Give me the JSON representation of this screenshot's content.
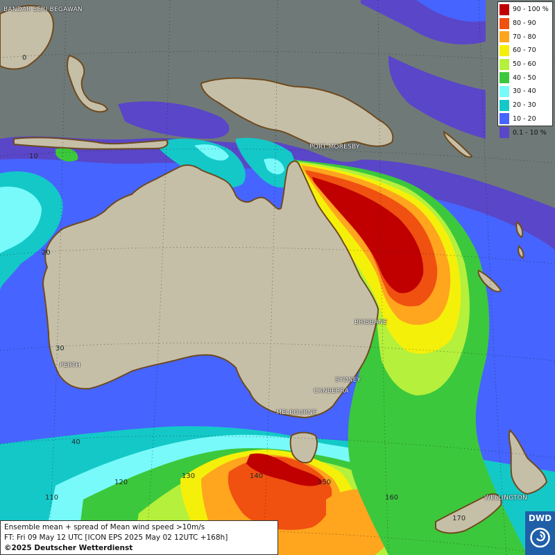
{
  "map": {
    "region": "Australia / South-West Pacific",
    "colors": {
      "ocean": "#6f7a78",
      "land": "#c6bfa8",
      "coast": "#6e4a1e"
    }
  },
  "legend": {
    "items": [
      {
        "label": "90 - 100 %",
        "color": "#c00000"
      },
      {
        "label": "80 - 90",
        "color": "#f05010"
      },
      {
        "label": "70 - 80",
        "color": "#ffa51e"
      },
      {
        "label": "60 - 70",
        "color": "#f5f00a"
      },
      {
        "label": "50 - 60",
        "color": "#b4f03c"
      },
      {
        "label": "40 - 50",
        "color": "#3cc83c"
      },
      {
        "label": "30 - 40",
        "color": "#78fafa"
      },
      {
        "label": "20 - 30",
        "color": "#14c8c8"
      },
      {
        "label": "10 - 20",
        "color": "#4664ff"
      },
      {
        "label": "0.1 - 10 %",
        "color": "#5a46c8"
      }
    ]
  },
  "cities": {
    "bandar": "BANDAR SERI BEGAWAN",
    "port_moresby": "PORT MORESBY",
    "brisbane": "BRISBANE",
    "sydney": "SYDNEY",
    "canberra": "CANBERRA",
    "melbourne": "MELBOURNE",
    "perth": "PERTH",
    "wellington": "WELLINGTON"
  },
  "grid": {
    "lat": [
      "0",
      "10",
      "20",
      "30",
      "40"
    ],
    "lon": [
      "110",
      "120",
      "130",
      "140",
      "150",
      "160",
      "170"
    ]
  },
  "info": {
    "line1": "Ensemble mean + spread of Mean wind speed >10m/s",
    "line2": "FT: Fri 09 May 12 UTC [ICON EPS 2025 May 02 12UTC +168h]",
    "line3": "©2025 Deutscher Wetterdienst"
  },
  "logo": {
    "text": "DWD"
  }
}
